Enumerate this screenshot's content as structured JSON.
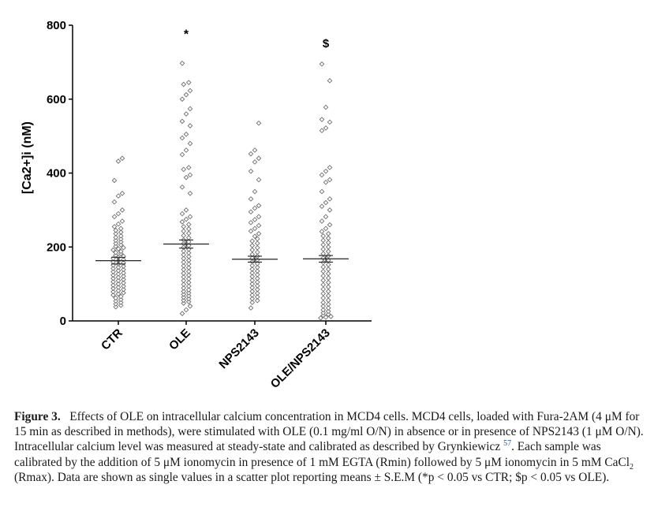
{
  "chart_data": {
    "type": "scatter",
    "ylabel": "[Ca2+]i (nM)",
    "ylim": [
      0,
      800
    ],
    "yticks": [
      0,
      200,
      400,
      600,
      800
    ],
    "categories": [
      "CTR",
      "OLE",
      "NPS2143",
      "OLE/NPS2143"
    ],
    "means": [
      163,
      208,
      167,
      168
    ],
    "sem": [
      9,
      11,
      8,
      9
    ],
    "significance": [
      "",
      "*",
      "",
      "$"
    ],
    "series": [
      {
        "values": [
          440,
          432,
          380,
          345,
          338,
          322,
          300,
          290,
          282,
          270,
          262,
          255,
          250,
          245,
          240,
          236,
          230,
          226,
          222,
          218,
          214,
          210,
          206,
          202,
          198,
          195,
          192,
          188,
          185,
          182,
          178,
          175,
          172,
          169,
          166,
          163,
          160,
          157,
          154,
          151,
          148,
          145,
          142,
          139,
          136,
          133,
          130,
          127,
          124,
          121,
          118,
          115,
          112,
          109,
          106,
          103,
          100,
          97,
          94,
          91,
          88,
          85,
          82,
          79,
          76,
          73,
          70,
          66,
          62,
          58,
          54,
          50,
          46,
          42,
          38
        ]
      },
      {
        "values": [
          697,
          645,
          640,
          623,
          612,
          600,
          574,
          560,
          540,
          528,
          505,
          495,
          480,
          462,
          450,
          415,
          410,
          395,
          388,
          362,
          345,
          300,
          290,
          282,
          275,
          268,
          261,
          255,
          249,
          243,
          237,
          231,
          225,
          219,
          214,
          209,
          204,
          199,
          194,
          189,
          184,
          179,
          174,
          169,
          164,
          159,
          154,
          149,
          144,
          139,
          134,
          129,
          124,
          119,
          114,
          109,
          104,
          99,
          94,
          89,
          84,
          80,
          76,
          72,
          68,
          64,
          60,
          56,
          52,
          48,
          40,
          30,
          20
        ]
      },
      {
        "values": [
          535,
          462,
          452,
          440,
          430,
          405,
          382,
          350,
          330,
          312,
          305,
          295,
          282,
          274,
          266,
          258,
          250,
          243,
          236,
          229,
          222,
          216,
          210,
          204,
          198,
          192,
          186,
          180,
          175,
          170,
          165,
          160,
          155,
          150,
          145,
          140,
          135,
          130,
          125,
          120,
          115,
          110,
          105,
          100,
          95,
          90,
          85,
          80,
          75,
          70,
          65,
          60,
          55,
          50,
          35
        ]
      },
      {
        "values": [
          695,
          650,
          578,
          545,
          538,
          522,
          515,
          415,
          405,
          395,
          382,
          375,
          350,
          330,
          320,
          310,
          300,
          282,
          270,
          260,
          250,
          242,
          236,
          230,
          224,
          218,
          212,
          206,
          200,
          194,
          188,
          182,
          176,
          170,
          164,
          158,
          152,
          146,
          140,
          134,
          128,
          122,
          116,
          110,
          104,
          98,
          92,
          86,
          80,
          74,
          68,
          62,
          56,
          50,
          45,
          40,
          35,
          30,
          26,
          22,
          18,
          15,
          12,
          10,
          8
        ]
      }
    ]
  },
  "caption": {
    "label": "Figure 3.",
    "text_1": "Effects of OLE on intracellular calcium concentration in MCD4 cells. MCD4 cells, loaded with Fura-2AM (4 μM for 15 min as described in methods), were stimulated with OLE (0.1 mg/ml O/N) in absence or in presence of NPS2143 (1 μM O/N). Intracellular calcium level was measured at steady-state and calibrated as described by Grynkiewicz ",
    "ref": "57",
    "text_2": ". Each sample was calibrated by the addition of 5 μM ionomycin in presence of 1 mM EGTA (Rmin) followed by 5 μM ionomycin in 5 mM CaCl",
    "sub": "2",
    "text_3": " (Rmax). Data are shown as single values in a scatter plot reporting means ± S.E.M (*p < 0.05 vs CTR; $p < 0.05 vs OLE)."
  }
}
